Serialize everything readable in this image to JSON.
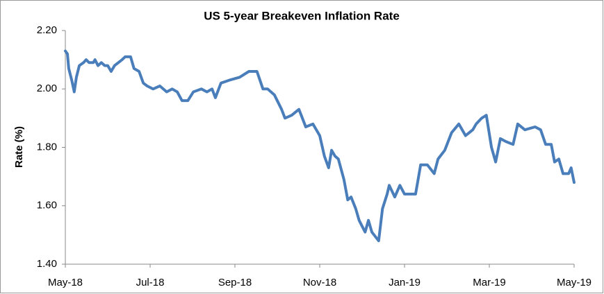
{
  "chart_data": {
    "type": "line",
    "title": "US 5-year Breakeven Inflation Rate",
    "y_label": "Rate (%)",
    "x": [
      0,
      0.05,
      0.08,
      0.15,
      0.21,
      0.26,
      0.33,
      0.43,
      0.49,
      0.56,
      0.66,
      0.7,
      0.77,
      0.85,
      0.93,
      1.0,
      1.08,
      1.16,
      1.25,
      1.34,
      1.41,
      1.54,
      1.62,
      1.74,
      1.84,
      1.93,
      2.07,
      2.23,
      2.39,
      2.52,
      2.64,
      2.75,
      2.89,
      3.02,
      3.21,
      3.34,
      3.46,
      3.54,
      3.67,
      3.87,
      4.11,
      4.33,
      4.52,
      4.66,
      4.77,
      4.93,
      5.1,
      5.18,
      5.34,
      5.51,
      5.67,
      5.84,
      6.0,
      6.11,
      6.21,
      6.28,
      6.36,
      6.44,
      6.57,
      6.66,
      6.74,
      6.85,
      6.93,
      7.07,
      7.15,
      7.23,
      7.39,
      7.48,
      7.59,
      7.64,
      7.77,
      7.89,
      8.0,
      8.13,
      8.26,
      8.38,
      8.54,
      8.7,
      8.79,
      8.95,
      9.11,
      9.28,
      9.44,
      9.61,
      9.69,
      9.82,
      9.93,
      10.05,
      10.15,
      10.26,
      10.39,
      10.56,
      10.67,
      10.84,
      11.08,
      11.21,
      11.33,
      11.46,
      11.54,
      11.64,
      11.74,
      11.87,
      11.93,
      12.0
    ],
    "values": [
      2.13,
      2.12,
      2.07,
      2.03,
      1.99,
      2.04,
      2.08,
      2.09,
      2.1,
      2.09,
      2.09,
      2.1,
      2.08,
      2.09,
      2.08,
      2.08,
      2.06,
      2.08,
      2.09,
      2.1,
      2.11,
      2.11,
      2.07,
      2.06,
      2.02,
      2.01,
      2.0,
      2.01,
      1.99,
      2.0,
      1.99,
      1.96,
      1.96,
      1.99,
      2.0,
      1.99,
      2.0,
      1.97,
      2.02,
      2.03,
      2.04,
      2.06,
      2.06,
      2.0,
      2.0,
      1.98,
      1.93,
      1.9,
      1.91,
      1.93,
      1.87,
      1.88,
      1.84,
      1.77,
      1.73,
      1.79,
      1.77,
      1.76,
      1.69,
      1.62,
      1.63,
      1.59,
      1.55,
      1.51,
      1.55,
      1.51,
      1.48,
      1.59,
      1.64,
      1.67,
      1.63,
      1.67,
      1.64,
      1.64,
      1.64,
      1.74,
      1.74,
      1.71,
      1.76,
      1.79,
      1.85,
      1.88,
      1.84,
      1.86,
      1.88,
      1.9,
      1.91,
      1.8,
      1.75,
      1.83,
      1.82,
      1.81,
      1.88,
      1.86,
      1.87,
      1.86,
      1.81,
      1.81,
      1.75,
      1.76,
      1.71,
      1.71,
      1.73,
      1.68
    ],
    "color": "#4a7ebb",
    "xlim": [
      0,
      12
    ],
    "xticks": [
      {
        "value": 0,
        "label": "May-18"
      },
      {
        "value": 2,
        "label": "Jul-18"
      },
      {
        "value": 4,
        "label": "Sep-18"
      },
      {
        "value": 6,
        "label": "Nov-18"
      },
      {
        "value": 8,
        "label": "Jan-19"
      },
      {
        "value": 10,
        "label": "Mar-19"
      },
      {
        "value": 12,
        "label": "May-19"
      }
    ],
    "ylim": [
      1.4,
      2.2
    ],
    "yticks": [
      {
        "value": 1.4,
        "label": "1.40"
      },
      {
        "value": 1.6,
        "label": "1.60"
      },
      {
        "value": 1.8,
        "label": "1.80"
      },
      {
        "value": 2.0,
        "label": "2.00"
      },
      {
        "value": 2.2,
        "label": "2.20"
      }
    ],
    "grid": false
  }
}
